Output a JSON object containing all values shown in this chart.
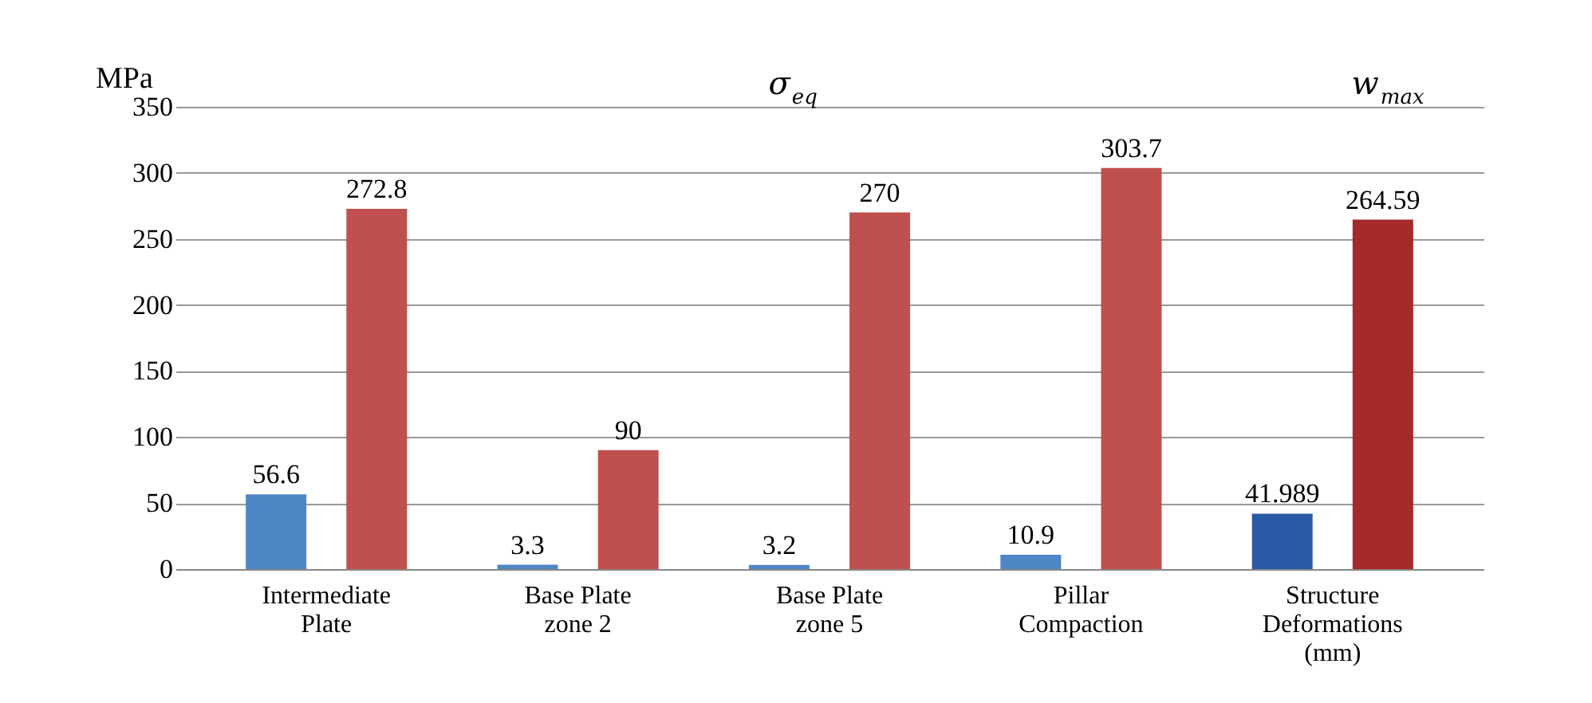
{
  "chart_data": {
    "type": "bar",
    "ylabel": "MPa",
    "categories": [
      "Intermediate Plate",
      "Base Plate zone 2",
      "Base Plate zone 5",
      "Pillar Compaction",
      "Structure Deformations (mm)"
    ],
    "series": [
      {
        "colors": [
          "#4f86c6",
          "#4f86c6",
          "#4f86c6",
          "#4f86c6",
          "#2a5aa8"
        ],
        "values": [
          56.6,
          3.3,
          3.2,
          10.9,
          41.989
        ]
      },
      {
        "colors": [
          "#c0504d",
          "#c0504d",
          "#c0504d",
          "#c0504d",
          "#a52a2a"
        ],
        "values": [
          272.8,
          90,
          270,
          303.7,
          264.59
        ]
      }
    ],
    "ylim": [
      0,
      350
    ],
    "yticks": [
      0,
      50,
      100,
      150,
      200,
      250,
      300,
      350
    ],
    "grid": "y",
    "data_labels": true,
    "annotations": [
      "σ$_{eq}$",
      "w$_{max}$"
    ]
  }
}
